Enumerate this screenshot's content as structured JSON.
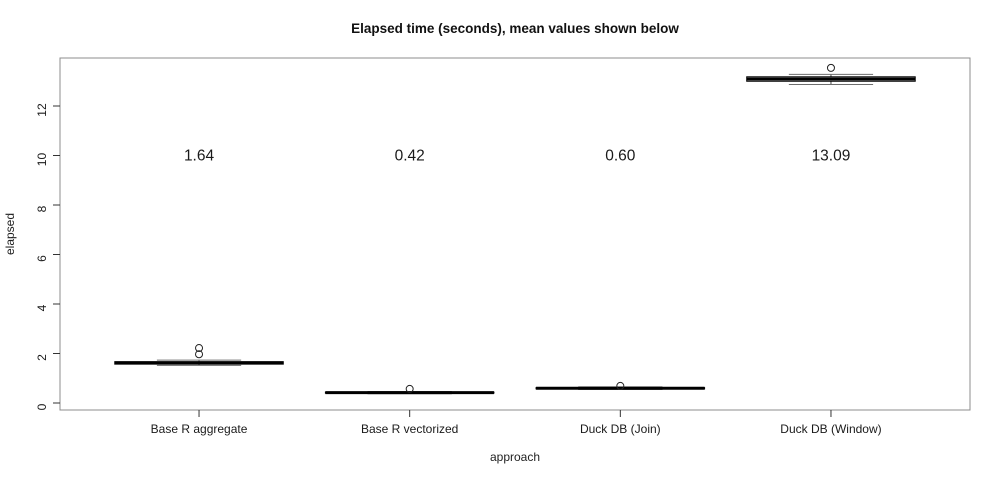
{
  "figure": {
    "title": "Elapsed time (seconds), mean values shown below",
    "x_axis_label": "approach",
    "y_axis_label": "elapsed"
  },
  "colors": {
    "background": "#ffffff",
    "frame": "#8c8c8c",
    "tick": "#333333",
    "text": "#1a1a1a",
    "box_line": "#000000",
    "staple": "#6e6e6e",
    "whisker": "#444444",
    "outlier": "#222222"
  },
  "chart_data": {
    "type": "boxplot",
    "title": "Elapsed time (seconds), mean values shown below",
    "xlabel": "approach",
    "ylabel": "elapsed",
    "categories": [
      "Base R aggregate",
      "Base R vectorized",
      "Duck DB (Join)",
      "Duck DB (Window)"
    ],
    "y_ticks": [
      0,
      2,
      4,
      6,
      8,
      10,
      12
    ],
    "ylim": [
      -0.3,
      13.9
    ],
    "grid": false,
    "legend": false,
    "mean_label_y_value": 10,
    "series": [
      {
        "name": "Base R aggregate",
        "median": 1.62,
        "q1": 1.57,
        "q3": 1.67,
        "whisker_low": 1.52,
        "whisker_high": 1.73,
        "outliers": [
          1.97,
          2.22
        ],
        "mean_label": "1.64"
      },
      {
        "name": "Base R vectorized",
        "median": 0.42,
        "q1": 0.4,
        "q3": 0.44,
        "whisker_low": 0.375,
        "whisker_high": 0.465,
        "outliers": [
          0.57
        ],
        "mean_label": "0.42"
      },
      {
        "name": "Duck DB (Join)",
        "median": 0.595,
        "q1": 0.57,
        "q3": 0.62,
        "whisker_low": 0.545,
        "whisker_high": 0.65,
        "outliers": [
          0.69
        ],
        "mean_label": "0.60"
      },
      {
        "name": "Duck DB (Window)",
        "median": 13.09,
        "q1": 13.0,
        "q3": 13.18,
        "whisker_low": 12.87,
        "whisker_high": 13.28,
        "outliers": [
          13.54
        ],
        "mean_label": "13.09"
      }
    ]
  }
}
